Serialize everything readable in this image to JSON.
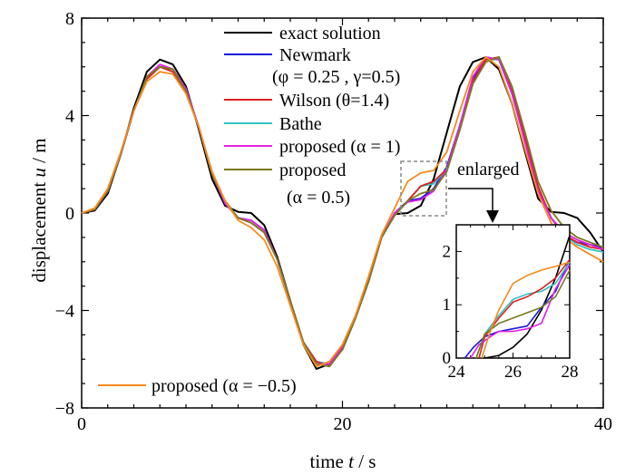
{
  "chart_data": {
    "type": "line",
    "xlabel_parts": [
      "time ",
      "t",
      " / s"
    ],
    "ylabel_parts": [
      "displacement ",
      "u",
      " / m"
    ],
    "xlim": [
      0,
      40
    ],
    "ylim": [
      -8,
      8
    ],
    "xticks": [
      "0",
      "20",
      "40"
    ],
    "yticks": [
      "8",
      "4",
      "0",
      "−4",
      "−8"
    ],
    "legend": {
      "exact": "exact solution",
      "newmark_line1": "Newmark",
      "newmark_line2": "(φ = 0.25 , γ=0.5)",
      "wilson": "Wilson (θ=1.4)",
      "bathe": "Bathe",
      "proposed1": "proposed (α = 1)",
      "proposed05_line1": "proposed",
      "proposed05_line2": "(α = 0.5)",
      "proposedneg": "proposed (α = −0.5)"
    },
    "annotation": "enlarged",
    "colors": {
      "exact": "#000000",
      "newmark": "#1a1adc",
      "wilson": "#e01e1e",
      "bathe": "#2ec4c4",
      "proposed1": "#e61ee6",
      "proposed05": "#7a7a1e",
      "proposedneg": "#f58a1e"
    },
    "series": [
      {
        "key": "exact",
        "x": [
          0,
          1,
          2,
          3,
          4,
          5,
          6,
          7,
          8,
          9,
          10,
          11,
          12,
          13,
          14,
          15,
          16,
          17,
          18,
          19,
          20,
          21,
          22,
          23,
          24,
          25,
          26,
          27,
          28,
          29,
          30,
          31,
          32,
          33,
          34,
          35,
          36,
          37,
          38,
          39,
          40
        ],
        "values": [
          0,
          0.1,
          0.8,
          2.4,
          4.3,
          5.8,
          6.3,
          6.1,
          5.2,
          3.4,
          1.4,
          0.3,
          0.05,
          0,
          -0.5,
          -1.8,
          -3.6,
          -5.4,
          -6.4,
          -6.2,
          -5.6,
          -4.3,
          -2.8,
          -1.0,
          -0.05,
          0,
          0.3,
          1.4,
          3.3,
          5.2,
          6.2,
          6.4,
          5.9,
          4.5,
          2.5,
          0.6,
          0.05,
          0,
          -0.2,
          -0.8,
          -1.6
        ]
      },
      {
        "key": "newmark",
        "x": [
          0,
          1,
          2,
          3,
          4,
          5,
          6,
          7,
          8,
          9,
          10,
          11,
          12,
          13,
          14,
          15,
          16,
          17,
          18,
          19,
          20,
          21,
          22,
          23,
          24,
          25,
          26,
          27,
          28,
          29,
          30,
          31,
          32,
          33,
          34,
          35,
          36,
          37,
          38,
          39,
          40
        ],
        "values": [
          0,
          0.15,
          0.9,
          2.4,
          4.2,
          5.6,
          6.0,
          5.9,
          5.1,
          3.5,
          1.6,
          0.4,
          -0.2,
          -0.3,
          -0.7,
          -1.9,
          -3.6,
          -5.3,
          -6.1,
          -6.2,
          -5.5,
          -4.3,
          -2.8,
          -1.0,
          0.0,
          0.5,
          0.6,
          1.0,
          1.9,
          3.6,
          5.5,
          6.4,
          6.3,
          4.9,
          3.0,
          1.0,
          -0.2,
          -0.9,
          -1.2,
          -1.3,
          -1.4
        ]
      },
      {
        "key": "wilson",
        "x": [
          0,
          1,
          2,
          3,
          4,
          5,
          6,
          7,
          8,
          9,
          10,
          11,
          12,
          13,
          14,
          15,
          16,
          17,
          18,
          19,
          20,
          21,
          22,
          23,
          24,
          25,
          26,
          27,
          28,
          29,
          30,
          31,
          32,
          33,
          34,
          35,
          36,
          37,
          38,
          39,
          40
        ],
        "values": [
          0,
          0.15,
          0.9,
          2.4,
          4.2,
          5.5,
          6.0,
          5.8,
          5.0,
          3.5,
          1.6,
          0.5,
          -0.2,
          -0.4,
          -0.8,
          -1.9,
          -3.6,
          -5.3,
          -6.1,
          -6.3,
          -5.6,
          -4.3,
          -2.8,
          -1.0,
          -0.1,
          0.5,
          1.1,
          1.3,
          1.8,
          3.5,
          5.4,
          6.3,
          6.4,
          5.0,
          3.1,
          1.1,
          -0.2,
          -0.9,
          -1.2,
          -1.4,
          -1.5
        ]
      },
      {
        "key": "bathe",
        "x": [
          0,
          1,
          2,
          3,
          4,
          5,
          6,
          7,
          8,
          9,
          10,
          11,
          12,
          13,
          14,
          15,
          16,
          17,
          18,
          19,
          20,
          21,
          22,
          23,
          24,
          25,
          26,
          27,
          28,
          29,
          30,
          31,
          32,
          33,
          34,
          35,
          36,
          37,
          38,
          39,
          40
        ],
        "values": [
          0,
          0.15,
          0.9,
          2.4,
          4.2,
          5.5,
          6.0,
          5.8,
          5.0,
          3.5,
          1.6,
          0.5,
          -0.2,
          -0.4,
          -0.8,
          -1.9,
          -3.6,
          -5.3,
          -6.1,
          -6.2,
          -5.5,
          -4.3,
          -2.8,
          -1.0,
          -0.1,
          0.5,
          1.1,
          1.2,
          1.8,
          3.5,
          5.4,
          6.3,
          6.3,
          4.9,
          3.0,
          1.0,
          -0.2,
          -0.9,
          -1.3,
          -1.5,
          -1.6
        ]
      },
      {
        "key": "proposed1",
        "x": [
          0,
          1,
          2,
          3,
          4,
          5,
          6,
          7,
          8,
          9,
          10,
          11,
          12,
          13,
          14,
          15,
          16,
          17,
          18,
          19,
          20,
          21,
          22,
          23,
          24,
          25,
          26,
          27,
          28,
          29,
          30,
          31,
          32,
          33,
          34,
          35,
          36,
          37,
          38,
          39,
          40
        ],
        "values": [
          0,
          0.15,
          0.9,
          2.4,
          4.2,
          5.6,
          6.1,
          5.9,
          5.1,
          3.5,
          1.6,
          0.4,
          -0.2,
          -0.3,
          -0.7,
          -1.9,
          -3.6,
          -5.3,
          -6.2,
          -6.2,
          -5.5,
          -4.3,
          -2.8,
          -1.0,
          0.0,
          0.45,
          0.55,
          0.9,
          1.8,
          3.6,
          5.6,
          6.4,
          6.3,
          4.9,
          2.9,
          0.9,
          -0.2,
          -0.8,
          -1.1,
          -1.3,
          -1.5
        ]
      },
      {
        "key": "proposed05",
        "x": [
          0,
          1,
          2,
          3,
          4,
          5,
          6,
          7,
          8,
          9,
          10,
          11,
          12,
          13,
          14,
          15,
          16,
          17,
          18,
          19,
          20,
          21,
          22,
          23,
          24,
          25,
          26,
          27,
          28,
          29,
          30,
          31,
          32,
          33,
          34,
          35,
          36,
          37,
          38,
          39,
          40
        ],
        "values": [
          0,
          0.15,
          0.9,
          2.4,
          4.2,
          5.6,
          6.0,
          5.9,
          5.0,
          3.5,
          1.6,
          0.5,
          -0.2,
          -0.4,
          -0.8,
          -1.9,
          -3.6,
          -5.3,
          -6.2,
          -6.3,
          -5.6,
          -4.3,
          -2.8,
          -1.0,
          -0.1,
          0.5,
          0.8,
          0.95,
          1.7,
          3.4,
          5.3,
          6.2,
          6.4,
          5.2,
          3.3,
          1.3,
          0.1,
          -0.6,
          -1.0,
          -1.2,
          -1.4
        ]
      },
      {
        "key": "proposedneg",
        "x": [
          0,
          1,
          2,
          3,
          4,
          5,
          6,
          7,
          8,
          9,
          10,
          11,
          12,
          13,
          14,
          15,
          16,
          17,
          18,
          19,
          20,
          21,
          22,
          23,
          24,
          25,
          26,
          27,
          28,
          29,
          30,
          31,
          32,
          33,
          34,
          35,
          36,
          37,
          38,
          39,
          40
        ],
        "values": [
          0,
          0.2,
          1.0,
          2.5,
          4.2,
          5.4,
          5.8,
          5.7,
          4.9,
          3.5,
          1.7,
          0.5,
          -0.3,
          -0.6,
          -1.1,
          -2.2,
          -3.8,
          -5.4,
          -6.3,
          -6.1,
          -5.4,
          -4.2,
          -2.6,
          -0.9,
          0.2,
          1.3,
          1.65,
          1.75,
          2.5,
          4.2,
          5.8,
          6.4,
          6.0,
          4.5,
          2.6,
          0.8,
          -0.4,
          -1.0,
          -1.4,
          -1.7,
          -2.0
        ]
      }
    ],
    "inset": {
      "xlim": [
        24,
        28
      ],
      "ylim": [
        0,
        2.5
      ],
      "xticks": [
        "24",
        "26",
        "28"
      ],
      "yticks": [
        "0",
        "1",
        "2"
      ],
      "series": [
        {
          "key": "exact",
          "x": [
            25.0,
            25.5,
            26,
            26.5,
            27,
            27.5,
            28
          ],
          "values": [
            0,
            0.05,
            0.2,
            0.45,
            0.9,
            1.5,
            2.3
          ]
        },
        {
          "key": "newmark",
          "x": [
            24.3,
            24.6,
            25,
            25.5,
            26,
            26.5,
            27,
            27.5,
            28
          ],
          "values": [
            0,
            0.2,
            0.4,
            0.5,
            0.55,
            0.6,
            0.95,
            1.25,
            1.85
          ]
        },
        {
          "key": "wilson",
          "x": [
            24.8,
            25,
            25.5,
            26,
            26.5,
            27,
            27.5,
            28
          ],
          "values": [
            0,
            0.4,
            0.75,
            1.05,
            1.15,
            1.3,
            1.5,
            1.85
          ]
        },
        {
          "key": "bathe",
          "x": [
            24.7,
            25,
            25.5,
            26,
            26.5,
            27,
            27.5,
            28
          ],
          "values": [
            0,
            0.45,
            0.8,
            1.1,
            1.2,
            1.25,
            1.4,
            1.8
          ]
        },
        {
          "key": "proposed1",
          "x": [
            24.5,
            24.8,
            25.2,
            25.5,
            26,
            26.5,
            27,
            27.5,
            28
          ],
          "values": [
            0,
            0.25,
            0.4,
            0.5,
            0.5,
            0.55,
            0.65,
            1.3,
            1.75
          ]
        },
        {
          "key": "proposed05",
          "x": [
            24.7,
            25,
            25.5,
            26,
            26.5,
            27,
            27.5,
            28
          ],
          "values": [
            0,
            0.45,
            0.65,
            0.75,
            0.85,
            0.95,
            1.15,
            1.65
          ]
        },
        {
          "key": "proposedneg",
          "x": [
            24.9,
            25.2,
            25.5,
            26,
            26.5,
            27,
            27.5,
            28
          ],
          "values": [
            0,
            0.5,
            0.9,
            1.4,
            1.55,
            1.65,
            1.72,
            1.8
          ]
        }
      ]
    }
  }
}
